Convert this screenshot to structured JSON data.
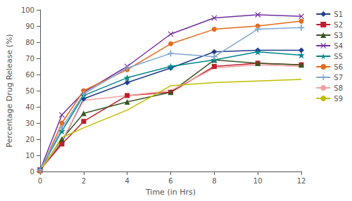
{
  "chart_data": {
    "type": "line",
    "xlabel": "Time (in Hrs)",
    "ylabel": "Percentage Drug Release (%)",
    "x": [
      0,
      1,
      2,
      4,
      6,
      8,
      10,
      12
    ],
    "series": [
      {
        "name": "S1",
        "color": "#1F3D8A",
        "marker": "diamond",
        "values": [
          1,
          18,
          45,
          55,
          64,
          74,
          75,
          75
        ]
      },
      {
        "name": "S2",
        "color": "#BE1E2D",
        "marker": "square",
        "values": [
          1,
          17,
          31,
          47,
          49,
          65,
          67,
          66
        ]
      },
      {
        "name": "S3",
        "color": "#375623",
        "marker": "triangle",
        "values": [
          1,
          20,
          36,
          43,
          49,
          69,
          67,
          66
        ]
      },
      {
        "name": "S4",
        "color": "#7030A0",
        "marker": "x",
        "values": [
          1,
          35,
          49,
          65,
          85,
          95,
          97,
          96
        ]
      },
      {
        "name": "S5",
        "color": "#00868B",
        "marker": "star",
        "values": [
          1,
          25,
          47,
          58,
          65,
          69,
          74,
          72
        ]
      },
      {
        "name": "S6",
        "color": "#E36B1A",
        "marker": "circle",
        "values": [
          0,
          30,
          50,
          63,
          79,
          88,
          90,
          93
        ]
      },
      {
        "name": "S7",
        "color": "#7FA7D0",
        "marker": "plus",
        "values": [
          1,
          27,
          48,
          64,
          73,
          71,
          88,
          89
        ]
      },
      {
        "name": "S8",
        "color": "#F4A0A0",
        "marker": "none",
        "values": [
          1,
          19,
          44,
          47,
          50,
          64,
          66,
          65
        ]
      },
      {
        "name": "S9",
        "color": "#BFBE00",
        "marker": "none",
        "values": [
          0,
          21,
          27,
          38,
          53,
          55,
          56,
          57
        ]
      }
    ],
    "xlim": [
      0,
      12
    ],
    "ylim": [
      0,
      100
    ],
    "xticks": [
      0,
      2,
      4,
      6,
      8,
      10,
      12
    ],
    "yticks": [
      0,
      10,
      20,
      30,
      40,
      50,
      60,
      70,
      80,
      90,
      100
    ],
    "grid": false,
    "legend": "right"
  }
}
